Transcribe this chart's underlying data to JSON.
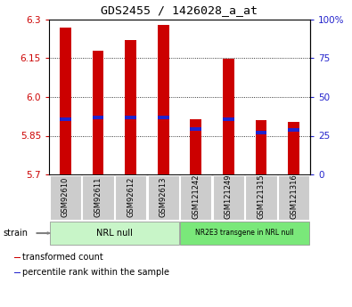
{
  "title": "GDS2455 / 1426028_a_at",
  "samples": [
    "GSM92610",
    "GSM92611",
    "GSM92612",
    "GSM92613",
    "GSM121242",
    "GSM121249",
    "GSM121315",
    "GSM121316"
  ],
  "groups": [
    {
      "label": "NRL null",
      "indices": [
        0,
        1,
        2,
        3
      ]
    },
    {
      "label": "NR2E3 transgene in NRL null",
      "indices": [
        4,
        5,
        6,
        7
      ]
    }
  ],
  "group_colors": [
    "#c8f5c8",
    "#7ae87a"
  ],
  "bar_color": "#cc0000",
  "blue_color": "#2222cc",
  "bar_bottom": 5.7,
  "bar_tops": [
    6.27,
    6.18,
    6.22,
    6.28,
    5.915,
    6.148,
    5.91,
    5.905
  ],
  "blue_vals": [
    5.915,
    5.922,
    5.922,
    5.92,
    5.875,
    5.915,
    5.862,
    5.872
  ],
  "ylim": [
    5.7,
    6.3
  ],
  "yticks_left": [
    5.7,
    5.85,
    6.0,
    6.15,
    6.3
  ],
  "yticks_right": [
    0,
    25,
    50,
    75,
    100
  ],
  "ylabel_left_color": "#cc0000",
  "ylabel_right_color": "#2222cc",
  "bar_width": 0.35,
  "sample_box_color": "#cccccc",
  "legend_items": [
    {
      "color": "#cc0000",
      "label": "transformed count"
    },
    {
      "color": "#2222cc",
      "label": "percentile rank within the sample"
    }
  ]
}
